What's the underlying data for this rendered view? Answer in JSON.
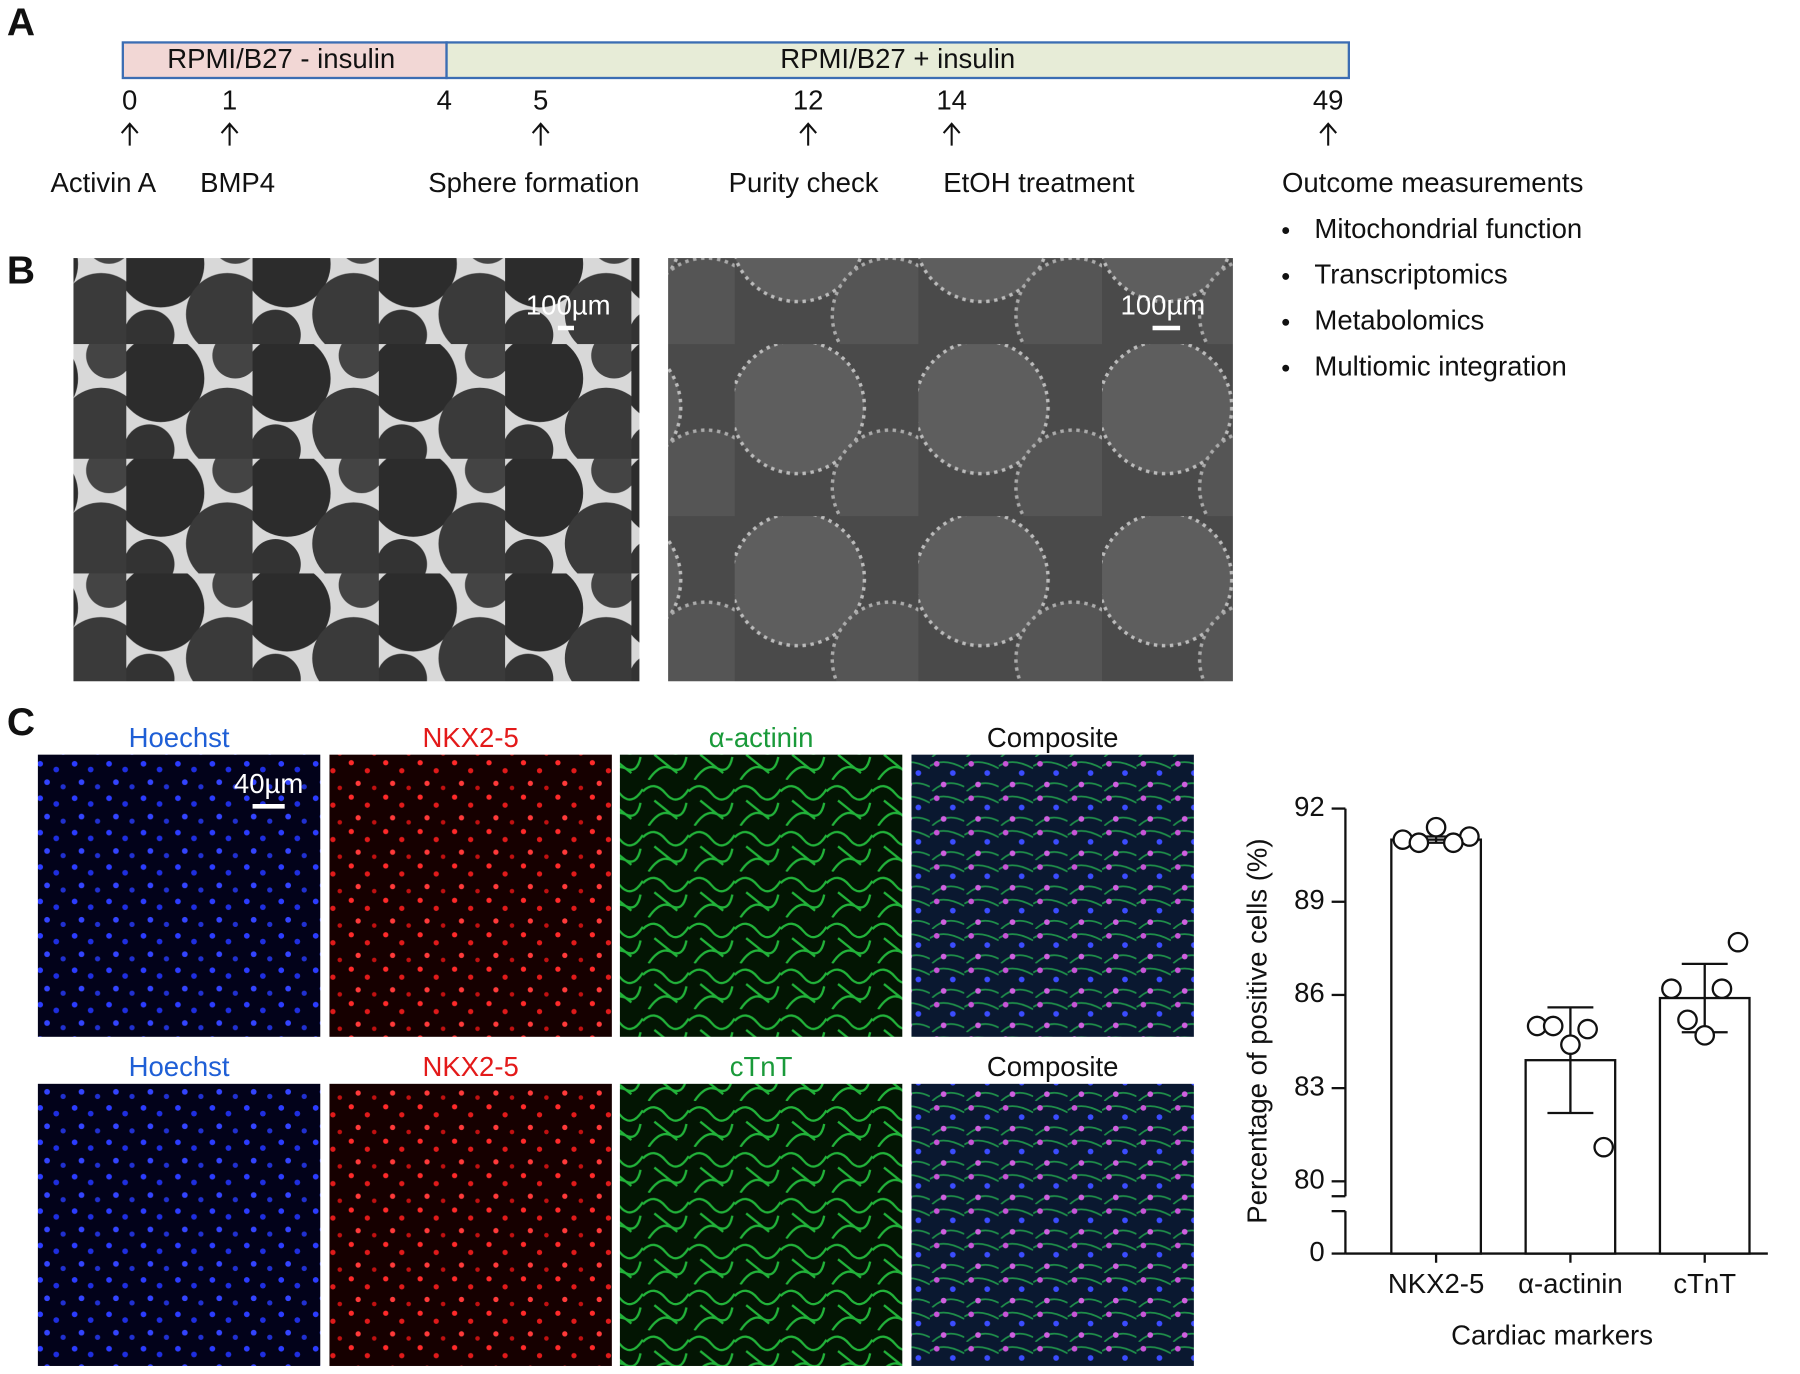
{
  "panel_a": {
    "label": "A",
    "media": [
      "RPMI/B27 - insulin",
      "RPMI/B27 + insulin"
    ],
    "timepoints": [
      {
        "day": "0",
        "event": "Activin A"
      },
      {
        "day": "1",
        "event": "BMP4"
      },
      {
        "day": "4"
      },
      {
        "day": "5",
        "event": "Sphere formation"
      },
      {
        "day": "12",
        "event": "Purity check"
      },
      {
        "day": "14",
        "event": "EtOH treatment"
      },
      {
        "day": "49",
        "event": "Outcome measurements"
      }
    ],
    "outcomes": [
      "Mitochondrial function",
      "Transcriptomics",
      "Metabolomics",
      "Multiomic integration"
    ]
  },
  "panel_b": {
    "label": "B",
    "scale_bars": [
      "100µm",
      "100µm"
    ]
  },
  "panel_c": {
    "label": "C",
    "scale_bar": "40µm",
    "rows": [
      [
        "Hoechst",
        "NKX2-5",
        "α-actinin",
        "Composite"
      ],
      [
        "Hoechst",
        "NKX2-5",
        "cTnT",
        "Composite"
      ]
    ]
  },
  "chart_data": {
    "type": "bar",
    "x_label": "Cardiac markers",
    "y_label": "Percentage of positive cells (%)",
    "categories": [
      "NKX2-5",
      "α-actinin",
      "cTnT"
    ],
    "values": [
      91.0,
      83.9,
      85.9
    ],
    "errors": [
      0.1,
      1.7,
      1.1
    ],
    "points": [
      [
        91.0,
        91.4,
        91.1,
        90.9,
        90.9
      ],
      [
        85.0,
        84.4,
        81.1,
        85.0,
        84.9
      ],
      [
        86.2,
        84.7,
        87.7,
        85.2,
        86.2
      ]
    ],
    "color": "#ffffff",
    "ylim": [
      80,
      92
    ],
    "yticks": [
      80,
      83,
      86,
      89,
      92
    ],
    "lower_yticks": [
      0
    ]
  }
}
